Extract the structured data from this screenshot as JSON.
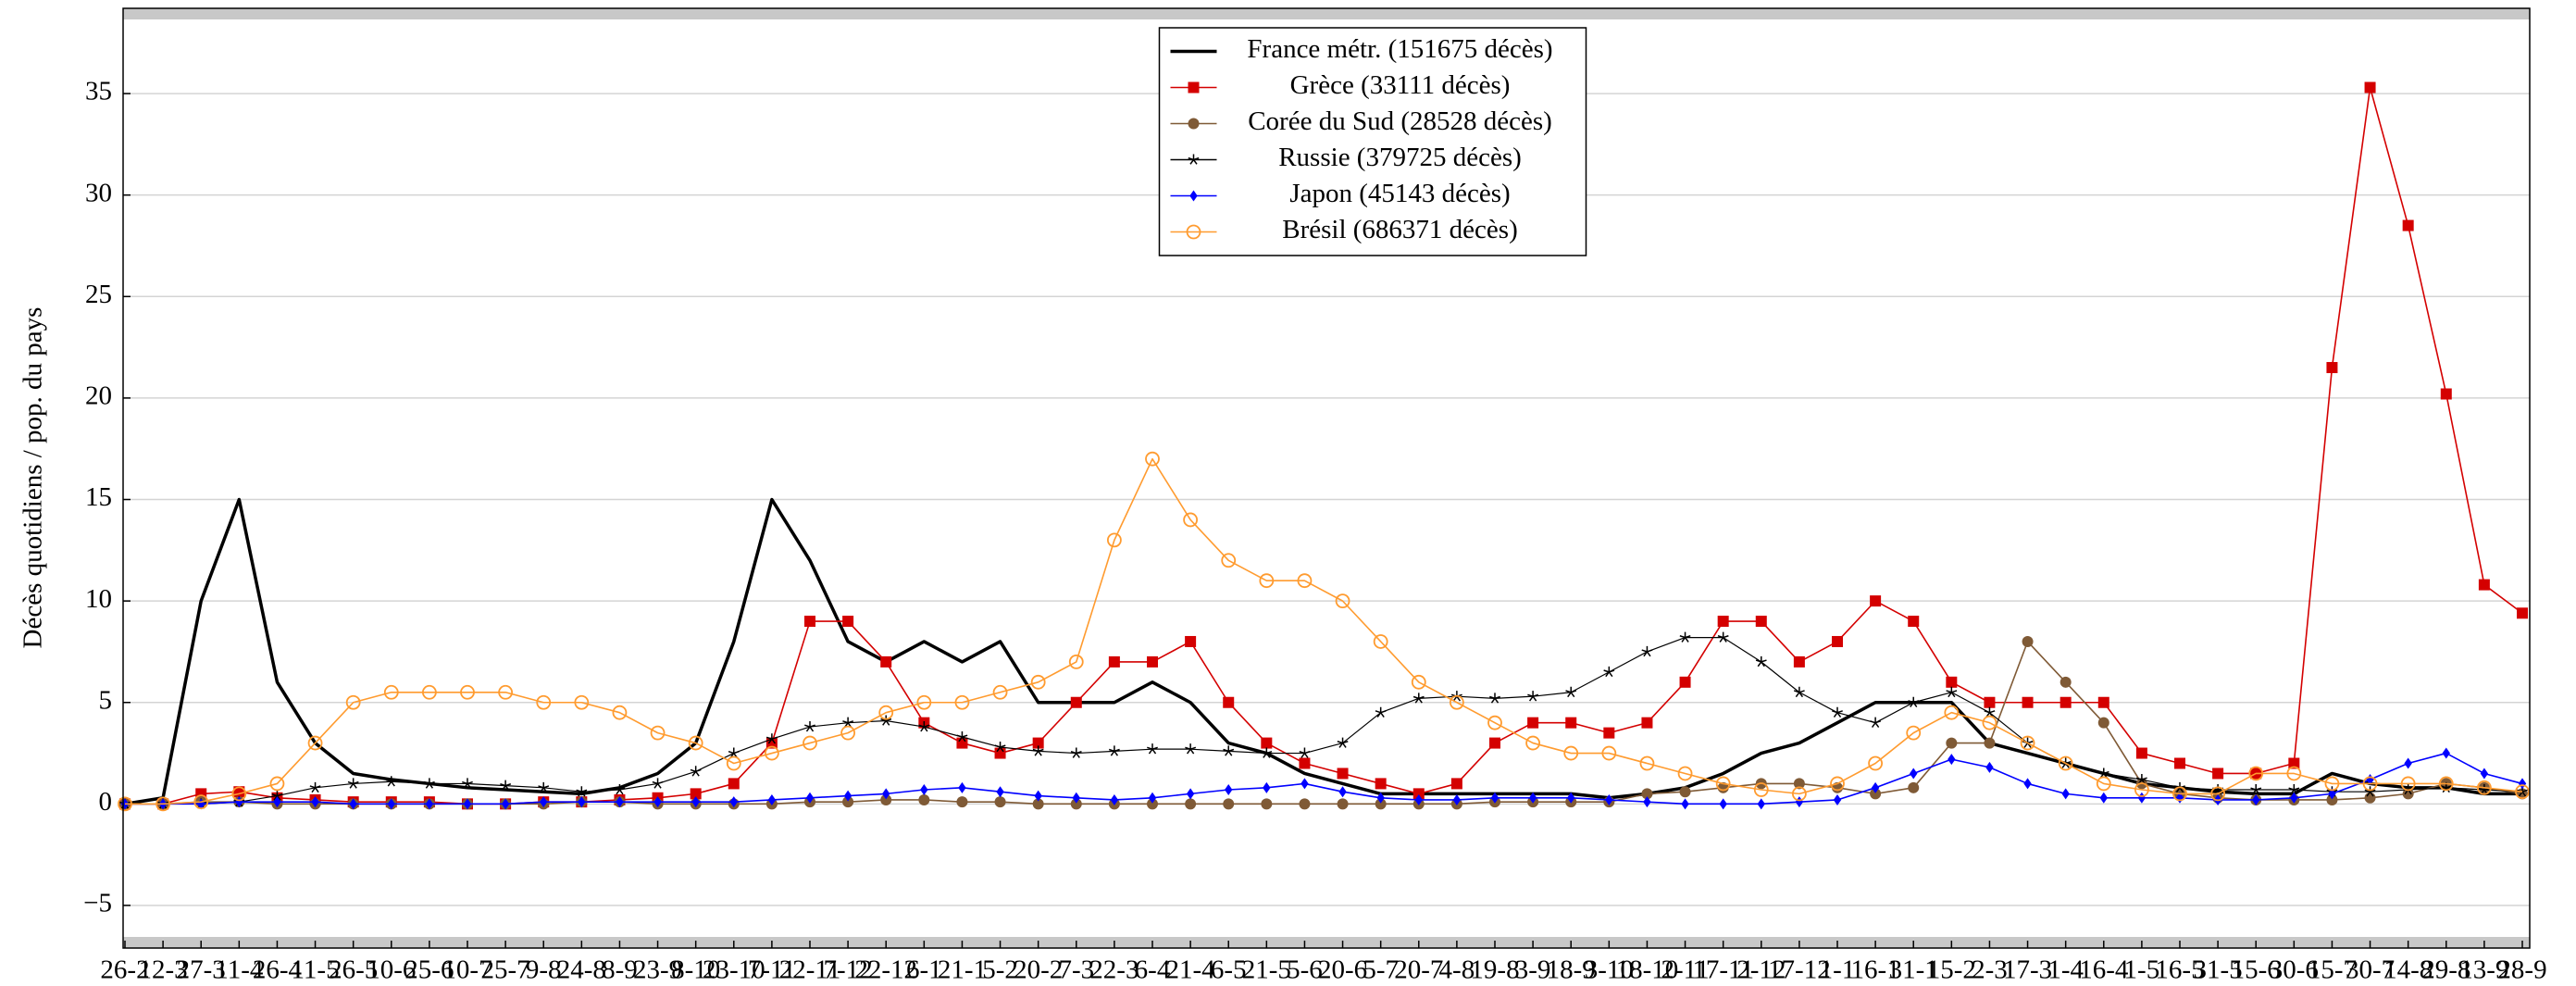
{
  "chart_data": {
    "type": "line",
    "ylabel": "Décès quotidiens / pop. du pays",
    "categories": [
      "26-2",
      "12-3",
      "27-3",
      "11-4",
      "26-4",
      "11-5",
      "26-5",
      "10-6",
      "25-6",
      "10-7",
      "25-7",
      "9-8",
      "24-8",
      "8-9",
      "23-9",
      "8-10",
      "23-10",
      "7-11",
      "22-11",
      "7-12",
      "22-12",
      "6-1",
      "21-1",
      "5-2",
      "20-2",
      "7-3",
      "22-3",
      "6-4",
      "21-4",
      "6-5",
      "21-5",
      "5-6",
      "20-6",
      "5-7",
      "20-7",
      "4-8",
      "19-8",
      "3-9",
      "18-9",
      "3-10",
      "18-10",
      "2-11",
      "17-11",
      "2-12",
      "17-12",
      "1-1",
      "16-1",
      "31-1",
      "15-2",
      "2-3",
      "17-3",
      "1-4",
      "16-4",
      "1-5",
      "16-5",
      "31-5",
      "15-6",
      "30-6",
      "15-7",
      "30-7",
      "14-8",
      "29-8",
      "13-9",
      "28-9"
    ],
    "ylim": [
      -7.1,
      39.2
    ],
    "yticks": [
      {
        "value": -5,
        "label": "−5"
      },
      0,
      5,
      10,
      15,
      20,
      25,
      30,
      35
    ],
    "grid": true,
    "legend": "top",
    "series": [
      {
        "name": "France métr. (151675 décès)",
        "color": "#000000",
        "marker": "none",
        "values": [
          0,
          0.3,
          10,
          15,
          6,
          3,
          1.5,
          1.2,
          1,
          0.8,
          0.7,
          0.6,
          0.5,
          0.8,
          1.5,
          3,
          8,
          15,
          12,
          8,
          7,
          8,
          7,
          8,
          5,
          5,
          5,
          6,
          5,
          3,
          2.5,
          1.5,
          1,
          0.5,
          0.5,
          0.5,
          0.5,
          0.5,
          0.5,
          0.3,
          0.5,
          0.8,
          1.5,
          2.5,
          3,
          4,
          5,
          5,
          5,
          3,
          2.5,
          2,
          1.5,
          1,
          0.8,
          0.6,
          0.5,
          0.5,
          1.5,
          1,
          0.8,
          0.8,
          0.5,
          0.5
        ]
      },
      {
        "name": "Grèce (33111 décès)",
        "color": "#d40000",
        "marker": "square",
        "values": [
          0,
          0,
          0.5,
          0.6,
          0.3,
          0.2,
          0.1,
          0.1,
          0.1,
          0,
          0,
          0.1,
          0.1,
          0.2,
          0.3,
          0.5,
          1,
          3,
          9,
          9,
          7,
          4,
          3,
          2.5,
          3,
          5,
          7,
          7,
          8,
          5,
          3,
          2,
          1.5,
          1,
          0.5,
          1,
          3,
          4,
          4,
          3.5,
          4,
          6,
          9,
          9,
          7,
          8,
          10,
          9,
          6,
          5,
          5,
          5,
          5,
          2.5,
          2,
          1.5,
          1.5,
          2,
          21.5,
          35.3,
          28.5,
          20.2,
          10.8,
          9.4
        ]
      },
      {
        "name": "Corée du Sud (28528 décès)",
        "color": "#7f5a36",
        "marker": "circle",
        "values": [
          0,
          0,
          0.1,
          0.1,
          0,
          0,
          0,
          0,
          0,
          0,
          0,
          0,
          0.1,
          0.1,
          0,
          0,
          0,
          0,
          0.1,
          0.1,
          0.2,
          0.2,
          0.1,
          0.1,
          0,
          0,
          0,
          0,
          0,
          0,
          0,
          0,
          0,
          0,
          0,
          0,
          0.1,
          0.1,
          0.1,
          0.1,
          0.5,
          0.6,
          0.8,
          1,
          1,
          0.8,
          0.5,
          0.8,
          3,
          3,
          8,
          6,
          4,
          1,
          0.5,
          0.3,
          0.2,
          0.2,
          0.2,
          0.3,
          0.5,
          1,
          0.8,
          0.5
        ]
      },
      {
        "name": "Russie (379725 décès)",
        "color": "#000000",
        "marker": "star",
        "values": [
          0,
          0,
          0,
          0.1,
          0.4,
          0.8,
          1,
          1.1,
          1,
          1,
          0.9,
          0.8,
          0.6,
          0.7,
          1,
          1.6,
          2.5,
          3.2,
          3.8,
          4,
          4.1,
          3.8,
          3.3,
          2.8,
          2.6,
          2.5,
          2.6,
          2.7,
          2.7,
          2.6,
          2.5,
          2.5,
          3,
          4.5,
          5.2,
          5.3,
          5.2,
          5.3,
          5.5,
          6.5,
          7.5,
          8.2,
          8.2,
          7,
          5.5,
          4.5,
          4,
          5,
          5.5,
          4.5,
          3,
          2,
          1.5,
          1.2,
          0.8,
          0.7,
          0.7,
          0.7,
          0.6,
          0.6,
          0.7,
          0.8,
          0.7,
          0.6
        ]
      },
      {
        "name": "Japon (45143 décès)",
        "color": "#0000ff",
        "marker": "diamond",
        "values": [
          0,
          0,
          0,
          0.1,
          0.1,
          0.1,
          0,
          0,
          0,
          0,
          0,
          0.1,
          0.1,
          0.1,
          0.1,
          0.1,
          0.1,
          0.2,
          0.3,
          0.4,
          0.5,
          0.7,
          0.8,
          0.6,
          0.4,
          0.3,
          0.2,
          0.3,
          0.5,
          0.7,
          0.8,
          1,
          0.6,
          0.3,
          0.2,
          0.2,
          0.3,
          0.3,
          0.3,
          0.2,
          0.1,
          0,
          0,
          0,
          0.1,
          0.2,
          0.8,
          1.5,
          2.2,
          1.8,
          1,
          0.5,
          0.3,
          0.3,
          0.3,
          0.2,
          0.2,
          0.3,
          0.5,
          1.2,
          2,
          2.5,
          1.5,
          1
        ]
      },
      {
        "name": "Brésil (686371 décès)",
        "color": "#ff9b2f",
        "marker": "open-circle",
        "values": [
          0,
          0,
          0.1,
          0.5,
          1,
          3,
          5,
          5.5,
          5.5,
          5.5,
          5.5,
          5,
          5,
          4.5,
          3.5,
          3,
          2,
          2.5,
          3,
          3.5,
          4.5,
          5,
          5,
          5.5,
          6,
          7,
          13,
          17,
          14,
          12,
          11,
          11,
          10,
          8,
          6,
          5,
          4,
          3,
          2.5,
          2.5,
          2,
          1.5,
          1,
          0.7,
          0.5,
          1,
          2,
          3.5,
          4.5,
          4,
          3,
          2,
          1,
          0.7,
          0.5,
          0.5,
          1.5,
          1.5,
          1,
          1,
          1,
          1,
          0.8,
          0.6
        ]
      }
    ]
  }
}
